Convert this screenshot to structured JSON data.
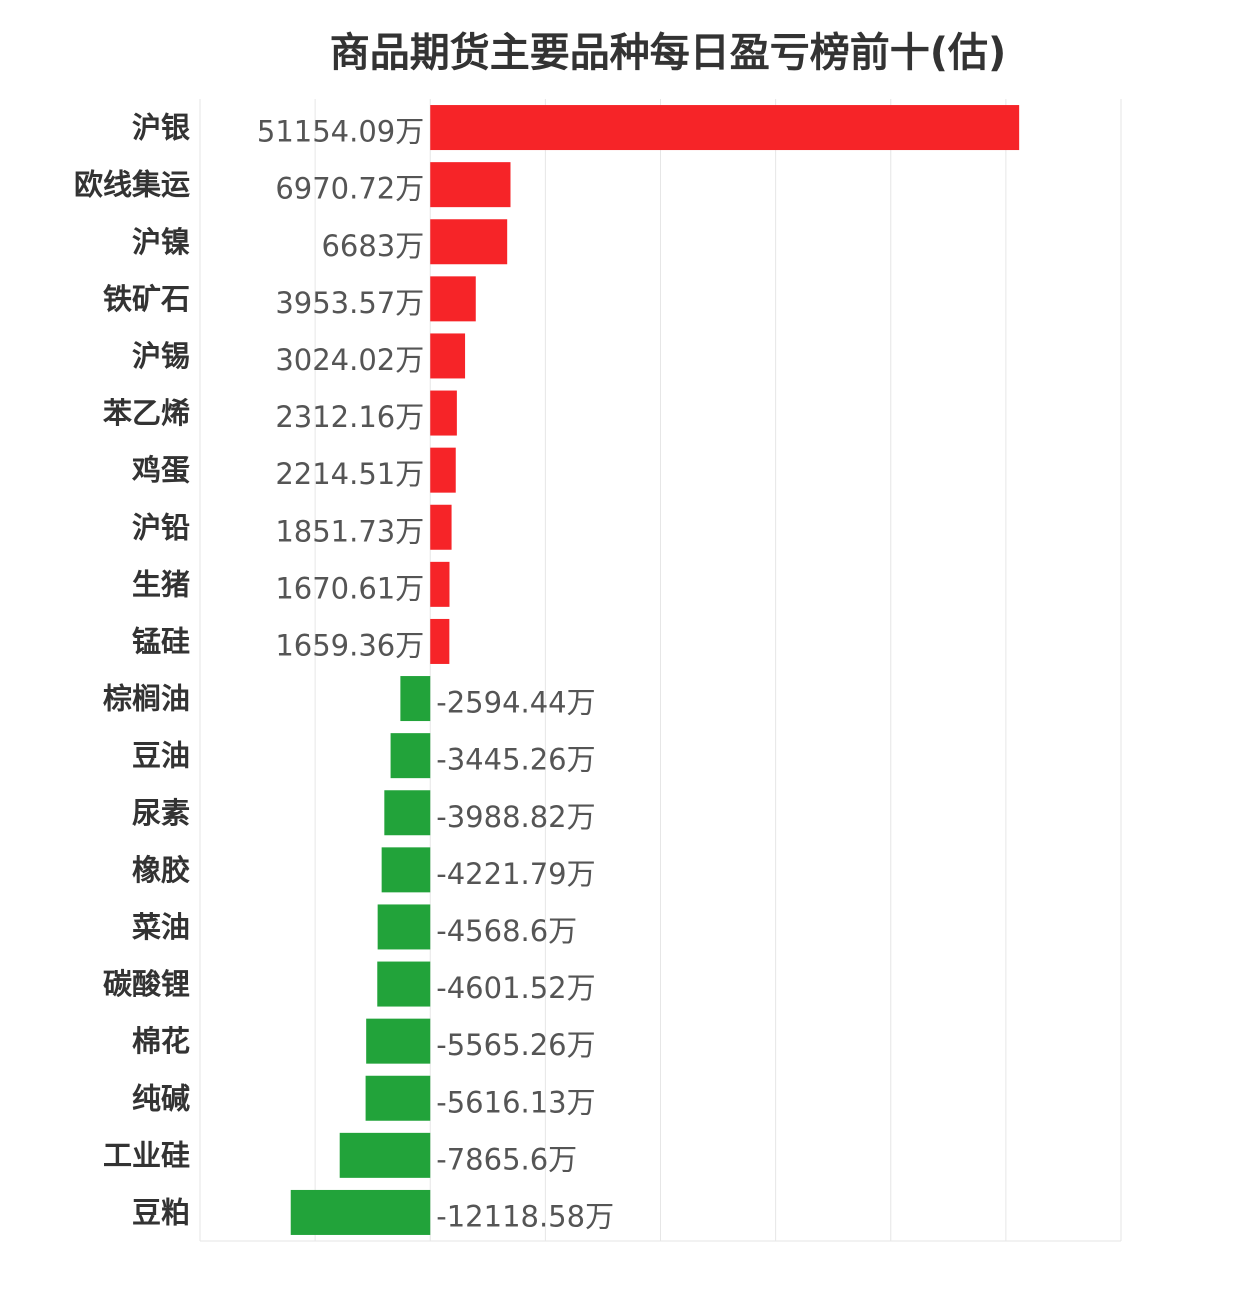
{
  "chart_data": {
    "type": "bar",
    "orientation": "horizontal",
    "title": "商品期货主要品种每日盈亏榜前十(估)",
    "unit": "万",
    "categories": [
      "沪银",
      "欧线集运",
      "沪镍",
      "铁矿石",
      "沪锡",
      "苯乙烯",
      "鸡蛋",
      "沪铅",
      "生猪",
      "锰硅",
      "棕榈油",
      "豆油",
      "尿素",
      "橡胶",
      "菜油",
      "碳酸锂",
      "棉花",
      "纯碱",
      "工业硅",
      "豆粕"
    ],
    "values": [
      51154.09,
      6970.72,
      6683,
      3953.57,
      3024.02,
      2312.16,
      2214.51,
      1851.73,
      1670.61,
      1659.36,
      -2594.44,
      -3445.26,
      -3988.82,
      -4221.79,
      -4568.6,
      -4601.52,
      -5565.26,
      -5616.13,
      -7865.6,
      -12118.58
    ],
    "value_labels": [
      "51154.09万",
      "6970.72万",
      "6683万",
      "3953.57万",
      "3024.02万",
      "2312.16万",
      "2214.51万",
      "1851.73万",
      "1670.61万",
      "1659.36万",
      "-2594.44万",
      "-3445.26万",
      "-3988.82万",
      "-4221.79万",
      "-4568.6万",
      "-4601.52万",
      "-5565.26万",
      "-5616.13万",
      "-7865.6万",
      "-12118.58万"
    ],
    "xlim": [
      -20000,
      60000
    ],
    "grid": true,
    "colors": {
      "positive": "#f62428",
      "negative": "#22a33a",
      "grid": "#e6e6e6"
    }
  }
}
